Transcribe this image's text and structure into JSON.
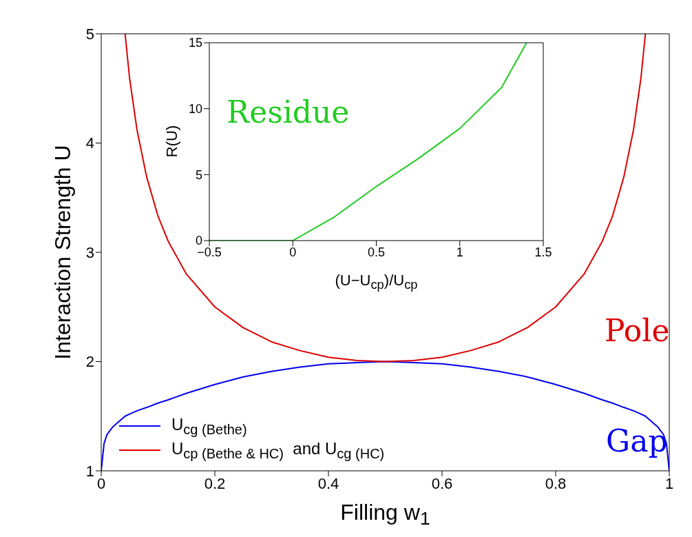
{
  "chart_data": [
    {
      "type": "line",
      "xlabel": "Filling w$_{1}$",
      "ylabel": "Interaction Strength U",
      "x": [
        0,
        0.005,
        0.01,
        0.02,
        0.042,
        0.05,
        0.063,
        0.08,
        0.1,
        0.118,
        0.15,
        0.2,
        0.25,
        0.3,
        0.35,
        0.4,
        0.45,
        0.5,
        0.55,
        0.6,
        0.65,
        0.7,
        0.75,
        0.8,
        0.85,
        0.882,
        0.9,
        0.92,
        0.937,
        0.95,
        0.958,
        0.98,
        0.99,
        0.995,
        1
      ],
      "series": [
        {
          "name": "U$_{cg (Bethe)}$",
          "color": "#0000ee",
          "values": [
            1,
            1.25,
            1.33,
            1.4,
            1.5,
            1.52,
            1.55,
            1.58,
            1.62,
            1.65,
            1.71,
            1.79,
            1.86,
            1.91,
            1.95,
            1.98,
            1.99,
            2.0,
            1.99,
            1.98,
            1.95,
            1.91,
            1.86,
            1.79,
            1.71,
            1.65,
            1.62,
            1.58,
            1.55,
            1.52,
            1.5,
            1.4,
            1.33,
            1.25,
            1
          ]
        },
        {
          "name": "U$_{cp (Bethe & HC)}$  and U$_{cg (HC)}$",
          "color": "#dd0000",
          "values": [
            null,
            null,
            null,
            null,
            5.0,
            4.59,
            4.12,
            3.69,
            3.33,
            3.1,
            2.8,
            2.5,
            2.31,
            2.18,
            2.1,
            2.04,
            2.01,
            2.0,
            2.01,
            2.04,
            2.1,
            2.18,
            2.31,
            2.5,
            2.8,
            3.1,
            3.33,
            3.69,
            4.12,
            4.59,
            5.0,
            null,
            null,
            null,
            null
          ]
        }
      ],
      "xlim": [
        0,
        1
      ],
      "xticks": [
        0,
        0.2,
        0.4,
        0.6,
        0.8,
        1
      ],
      "ylim": [
        1,
        5
      ],
      "yticks": [
        1,
        2,
        3,
        4,
        5
      ],
      "grid": false,
      "legend": "bottom left",
      "marker": "none",
      "line_style": "solid",
      "annotations": [
        "Pole",
        "Gap"
      ]
    },
    {
      "type": "line",
      "xlabel": "(U−U$_{cp}$)/U$_{cp}$",
      "ylabel": "R(U)",
      "x": [
        -0.5,
        0,
        0.25,
        0.5,
        0.75,
        1,
        1.25,
        1.4
      ],
      "series": [
        {
          "color": "#22cc22",
          "values": [
            0,
            0,
            1.8,
            4.1,
            6.2,
            8.5,
            11.6,
            15
          ]
        }
      ],
      "xlim": [
        -0.5,
        1.5
      ],
      "xticks": [
        {
          "value": -0.5,
          "label": "−0.5"
        },
        0,
        0.5,
        1,
        1.5
      ],
      "ylim": [
        0,
        15
      ],
      "yticks": [
        0,
        5,
        10,
        15
      ],
      "grid": false,
      "legend": false,
      "marker": "none",
      "line_style": "solid",
      "annotations": [
        "Residue"
      ]
    }
  ]
}
